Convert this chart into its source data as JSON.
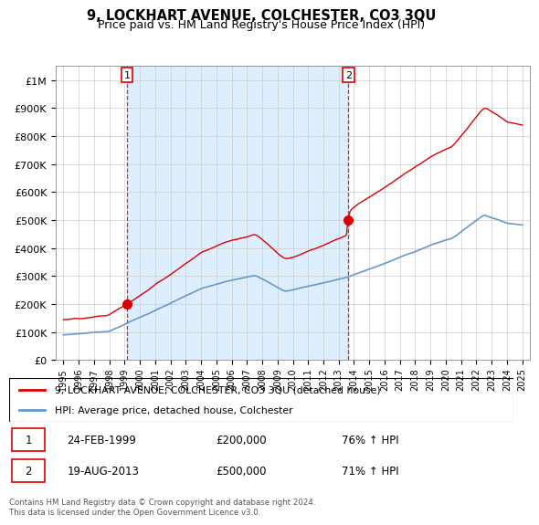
{
  "title": "9, LOCKHART AVENUE, COLCHESTER, CO3 3QU",
  "subtitle": "Price paid vs. HM Land Registry's House Price Index (HPI)",
  "ylim": [
    0,
    1050000
  ],
  "yticks": [
    0,
    100000,
    200000,
    300000,
    400000,
    500000,
    600000,
    700000,
    800000,
    900000,
    1000000
  ],
  "ytick_labels": [
    "£0",
    "£100K",
    "£200K",
    "£300K",
    "£400K",
    "£500K",
    "£600K",
    "£700K",
    "£800K",
    "£900K",
    "£1M"
  ],
  "sale1_date": 1999.15,
  "sale1_price": 200000,
  "sale2_date": 2013.63,
  "sale2_price": 500000,
  "red_line_color": "#dd0000",
  "blue_line_color": "#6699cc",
  "shade_color": "#ddeeff",
  "marker_color": "#dd0000",
  "vline_color": "#dd0000",
  "legend_label_red": "9, LOCKHART AVENUE, COLCHESTER, CO3 3QU (detached house)",
  "legend_label_blue": "HPI: Average price, detached house, Colchester",
  "annotation1_date": "24-FEB-1999",
  "annotation1_price": "£200,000",
  "annotation1_hpi": "76% ↑ HPI",
  "annotation2_date": "19-AUG-2013",
  "annotation2_price": "£500,000",
  "annotation2_hpi": "71% ↑ HPI",
  "footer": "Contains HM Land Registry data © Crown copyright and database right 2024.\nThis data is licensed under the Open Government Licence v3.0.",
  "xmin": 1994.5,
  "xmax": 2025.5,
  "xticks": [
    1995,
    1996,
    1997,
    1998,
    1999,
    2000,
    2001,
    2002,
    2003,
    2004,
    2005,
    2006,
    2007,
    2008,
    2009,
    2010,
    2011,
    2012,
    2013,
    2014,
    2015,
    2016,
    2017,
    2018,
    2019,
    2020,
    2021,
    2022,
    2023,
    2024,
    2025
  ]
}
